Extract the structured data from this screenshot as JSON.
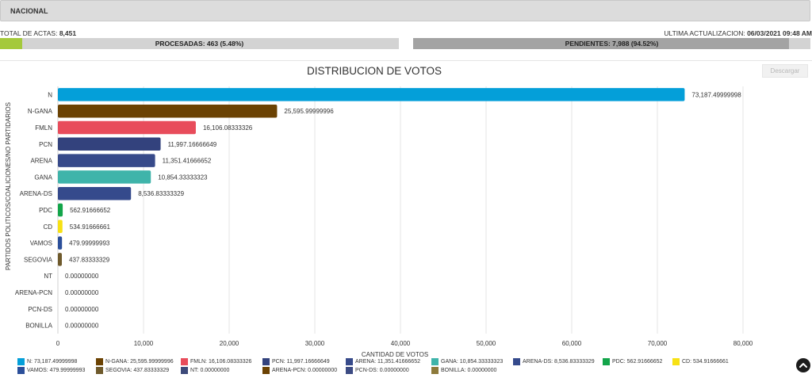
{
  "header": {
    "title": "NACIONAL"
  },
  "actas": {
    "total_label": "TOTAL DE ACTAS:",
    "total_value": "8,451",
    "update_label": "ULTIMA ACTUALIZACION:",
    "update_value": "06/03/2021 09:48 AM",
    "procesadas_label": "PROCESADAS: 463 (5.48%)",
    "procesadas_fraction": 0.0548,
    "pendientes_label": "PENDIENTES: 7,988 (94.52%)",
    "pendientes_fraction": 0.9452
  },
  "toolbar": {
    "download_label": "Descargar"
  },
  "chart_data": {
    "type": "bar",
    "orientation": "horizontal",
    "title": "DISTRIBUCION DE VOTOS",
    "xlabel": "CANTIDAD DE VOTOS",
    "ylabel": "PARTIDOS POLITICOS/COALICIONES/NO PARTIDARIOS",
    "xlim": [
      0,
      80000
    ],
    "xticks": [
      0,
      10000,
      20000,
      30000,
      40000,
      50000,
      60000,
      70000,
      80000
    ],
    "xtick_labels": [
      "0",
      "10,000",
      "20,000",
      "30,000",
      "40,000",
      "50,000",
      "60,000",
      "70,000",
      "80,000"
    ],
    "grid": true,
    "legend_position": "bottom",
    "categories": [
      "N",
      "N-GANA",
      "FMLN",
      "PCN",
      "ARENA",
      "GANA",
      "ARENA-DS",
      "PDC",
      "CD",
      "VAMOS",
      "SEGOVIA",
      "NT",
      "ARENA-PCN",
      "PCN-DS",
      "BONILLA"
    ],
    "values": [
      73187.49999998,
      25595.99999996,
      16106.08333326,
      11997.16666649,
      11351.41666652,
      10854.33333323,
      8536.83333329,
      562.91666652,
      534.91666661,
      479.99999993,
      437.83333329,
      0,
      0,
      0,
      0
    ],
    "value_labels": [
      "73,187.49999998",
      "25,595.99999996",
      "16,106.08333326",
      "11,997.16666649",
      "11,351.41666652",
      "10,854.33333323",
      "8,536.83333329",
      "562.91666652",
      "534.91666661",
      "479.99999993",
      "437.83333329",
      "0.00000000",
      "0.00000000",
      "0.00000000",
      "0.00000000"
    ],
    "colors": [
      "#049fd9",
      "#6b4203",
      "#e84c5b",
      "#33427d",
      "#374a8a",
      "#3fb4aa",
      "#354a8c",
      "#13a54a",
      "#f7e114",
      "#2b4f9a",
      "#6f5a2c",
      "#3d4a7a",
      "#6b4203",
      "#3c4b83",
      "#8d7a3b"
    ],
    "legend": [
      "N: 73,187.49999998",
      "N-GANA: 25,595.99999996",
      "FMLN: 16,106.08333326",
      "PCN: 11,997.16666649",
      "ARENA: 11,351.41666652",
      "GANA: 10,854.33333323",
      "ARENA-DS: 8,536.83333329",
      "PDC: 562.91666652",
      "CD: 534.91666661",
      "VAMOS: 479.99999993",
      "SEGOVIA: 437.83333329",
      "NT: 0.00000000",
      "ARENA-PCN: 0.00000000",
      "PCN-DS: 0.00000000",
      "BONILLA: 0.00000000"
    ]
  }
}
